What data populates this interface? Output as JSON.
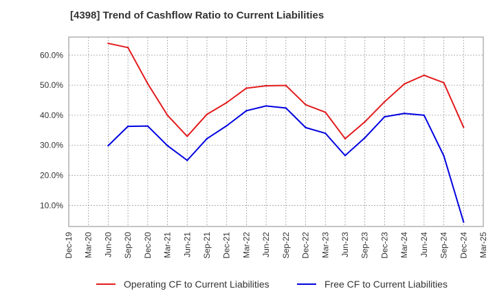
{
  "chart_data": {
    "type": "line",
    "title": "[4398]  Trend of Cashflow Ratio to Current Liabilities",
    "xlabel": "",
    "ylabel": "",
    "categories": [
      "Dec-19",
      "Mar-20",
      "Jun-20",
      "Sep-20",
      "Dec-20",
      "Mar-21",
      "Jun-21",
      "Sep-21",
      "Dec-21",
      "Mar-22",
      "Jun-22",
      "Sep-22",
      "Dec-22",
      "Mar-23",
      "Jun-23",
      "Sep-23",
      "Dec-23",
      "Mar-24",
      "Jun-24",
      "Sep-24",
      "Dec-24",
      "Mar-25"
    ],
    "ylim": [
      3.0,
      66.0
    ],
    "yticks": [
      10,
      20,
      30,
      40,
      50,
      60
    ],
    "ytick_labels": [
      "10.0%",
      "20.0%",
      "30.0%",
      "40.0%",
      "50.0%",
      "60.0%"
    ],
    "grid": true,
    "legend_position": "bottom",
    "series": [
      {
        "name": "Operating CF to Current Liabilities",
        "color": "#e31a1c",
        "values": [
          null,
          null,
          63.9,
          62.5,
          50.5,
          40.0,
          33.0,
          40.3,
          44.2,
          49.0,
          49.8,
          49.9,
          43.5,
          41.0,
          32.2,
          37.8,
          44.5,
          50.4,
          53.3,
          50.8,
          36.0,
          null
        ]
      },
      {
        "name": "Free CF to Current Liabilities",
        "color": "#0000e0",
        "values": [
          null,
          null,
          29.9,
          36.3,
          36.4,
          29.9,
          25.0,
          32.2,
          36.5,
          41.5,
          43.1,
          42.4,
          35.9,
          34.0,
          26.6,
          32.5,
          39.5,
          40.6,
          40.0,
          26.5,
          4.5,
          null
        ]
      }
    ]
  }
}
